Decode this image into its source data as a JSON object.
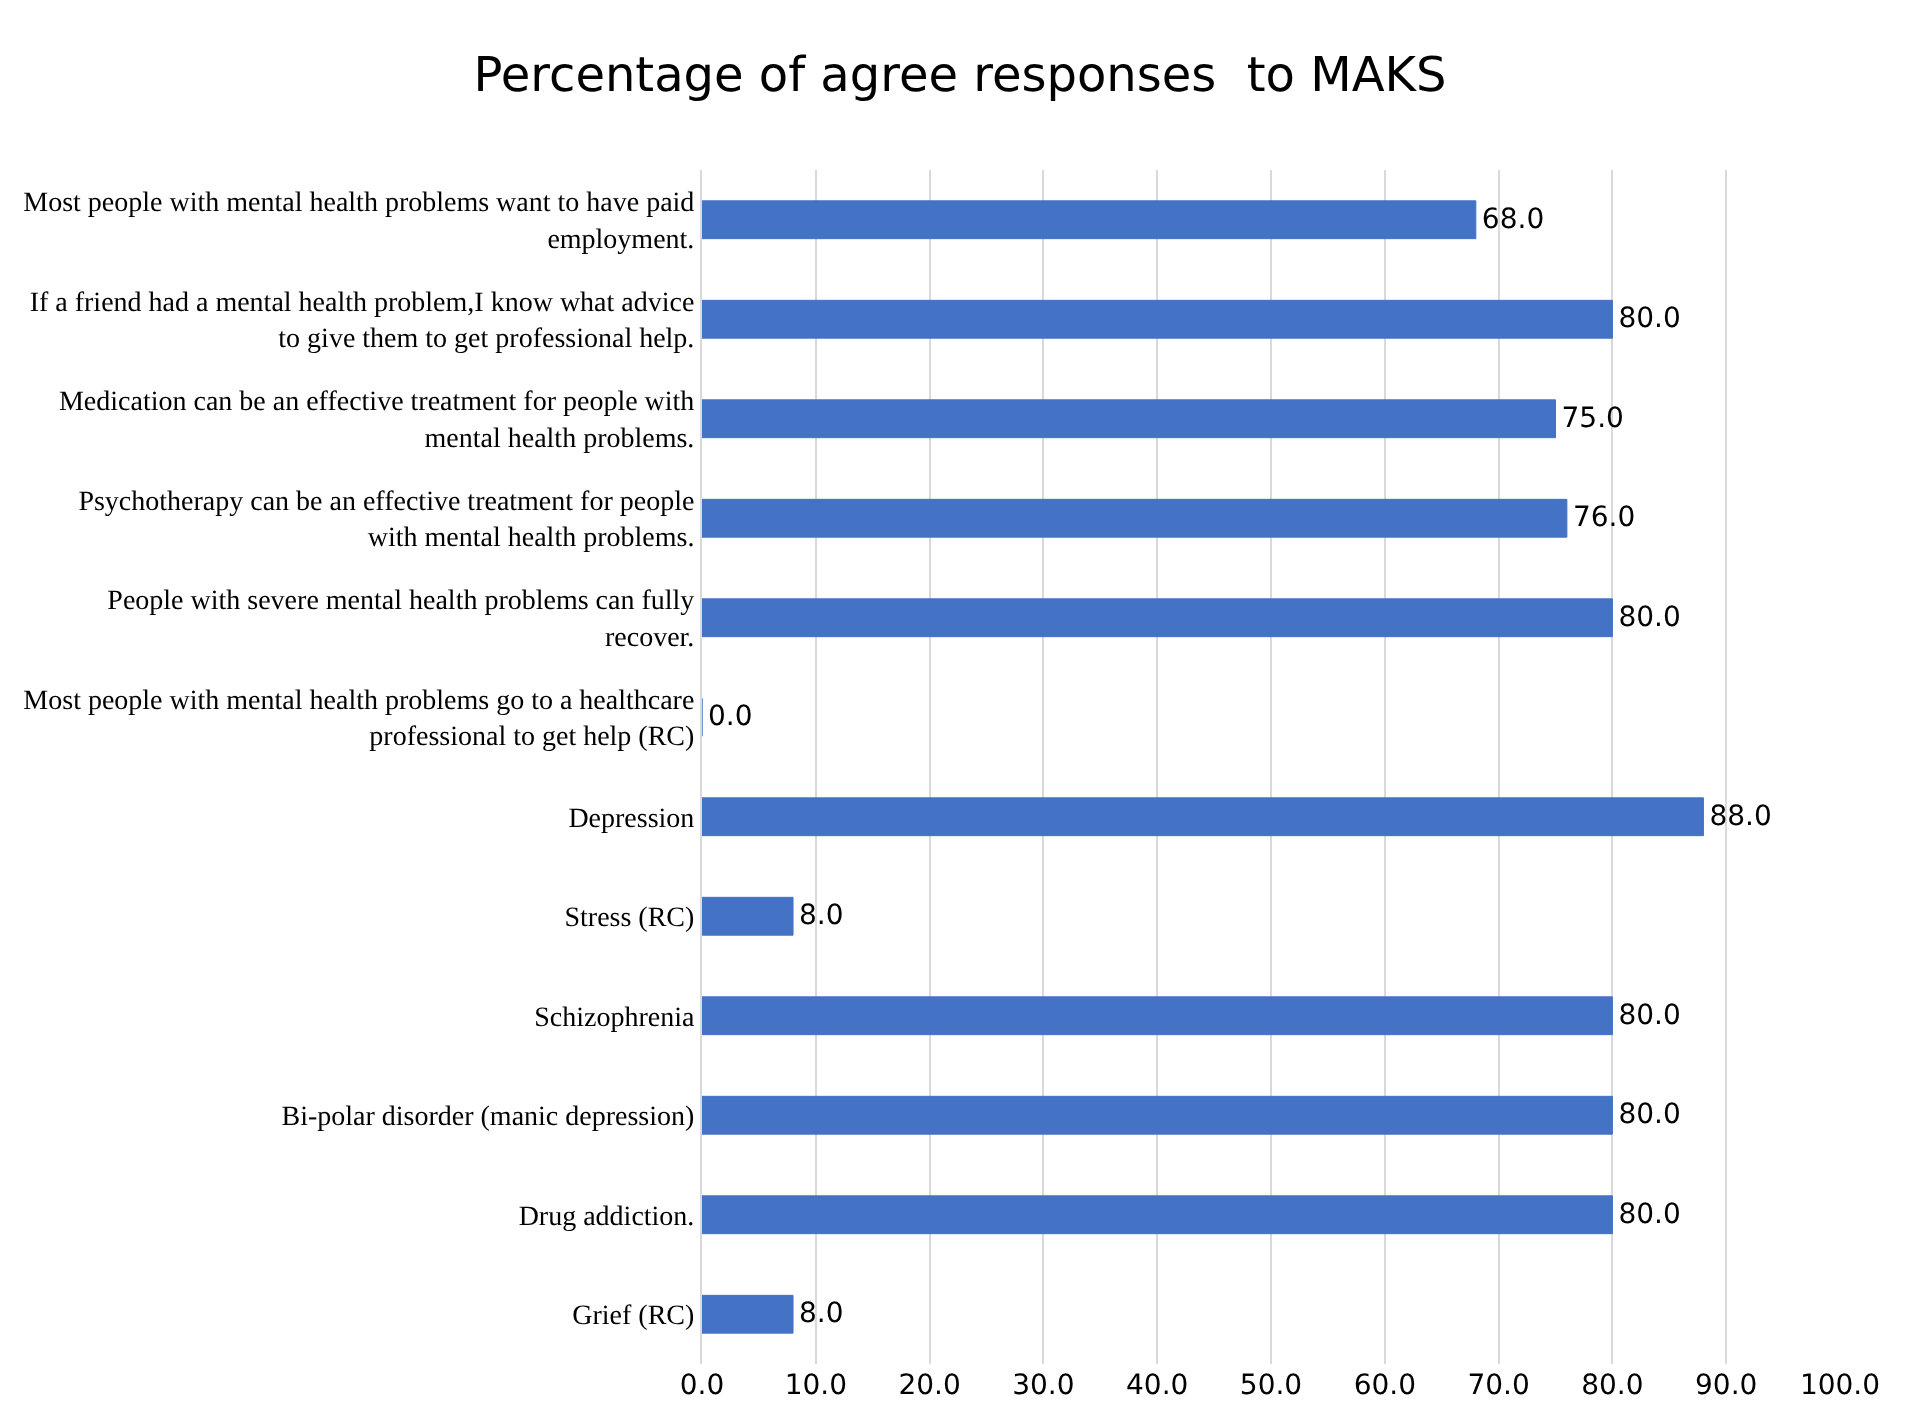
{
  "chart_data": {
    "type": "bar",
    "orientation": "horizontal",
    "title": "Percentage of agree responses  to MAKS",
    "categories": [
      "Most people with mental health problems want to have paid employment.",
      "If a friend had a mental health problem,I know what advice to give them to get professional help.",
      "Medication can be an effective treatment for people with mental health problems.",
      "Psychotherapy can be an effective treatment for people with mental health problems.",
      "People with severe mental health problems can fully recover.",
      "Most people with mental health problems go to a healthcare professional to get help (RC)",
      "Depression",
      "Stress (RC)",
      "Schizophrenia",
      "Bi-polar disorder (manic depression)",
      "Drug addiction.",
      "Grief (RC)"
    ],
    "values": [
      68.0,
      80.0,
      75.0,
      76.0,
      80.0,
      0.0,
      88.0,
      8.0,
      80.0,
      80.0,
      80.0,
      8.0
    ],
    "value_labels": [
      "68.0",
      "80.0",
      "75.0",
      "76.0",
      "80.0",
      "0.0",
      "88.0",
      "8.0",
      "80.0",
      "80.0",
      "80.0",
      "8.0"
    ],
    "color": "#4472c4",
    "xlim": [
      0,
      100
    ],
    "xticks": [
      {
        "value": 0,
        "label": "0.0"
      },
      {
        "value": 10,
        "label": "10.0"
      },
      {
        "value": 20,
        "label": "20.0"
      },
      {
        "value": 30,
        "label": "30.0"
      },
      {
        "value": 40,
        "label": "40.0"
      },
      {
        "value": 50,
        "label": "50.0"
      },
      {
        "value": 60,
        "label": "60.0"
      },
      {
        "value": 70,
        "label": "70.0"
      },
      {
        "value": 80,
        "label": "80.0"
      },
      {
        "value": 90,
        "label": "90.0"
      },
      {
        "value": 100,
        "label": "100.0"
      }
    ],
    "grid": "x",
    "legend": false
  }
}
